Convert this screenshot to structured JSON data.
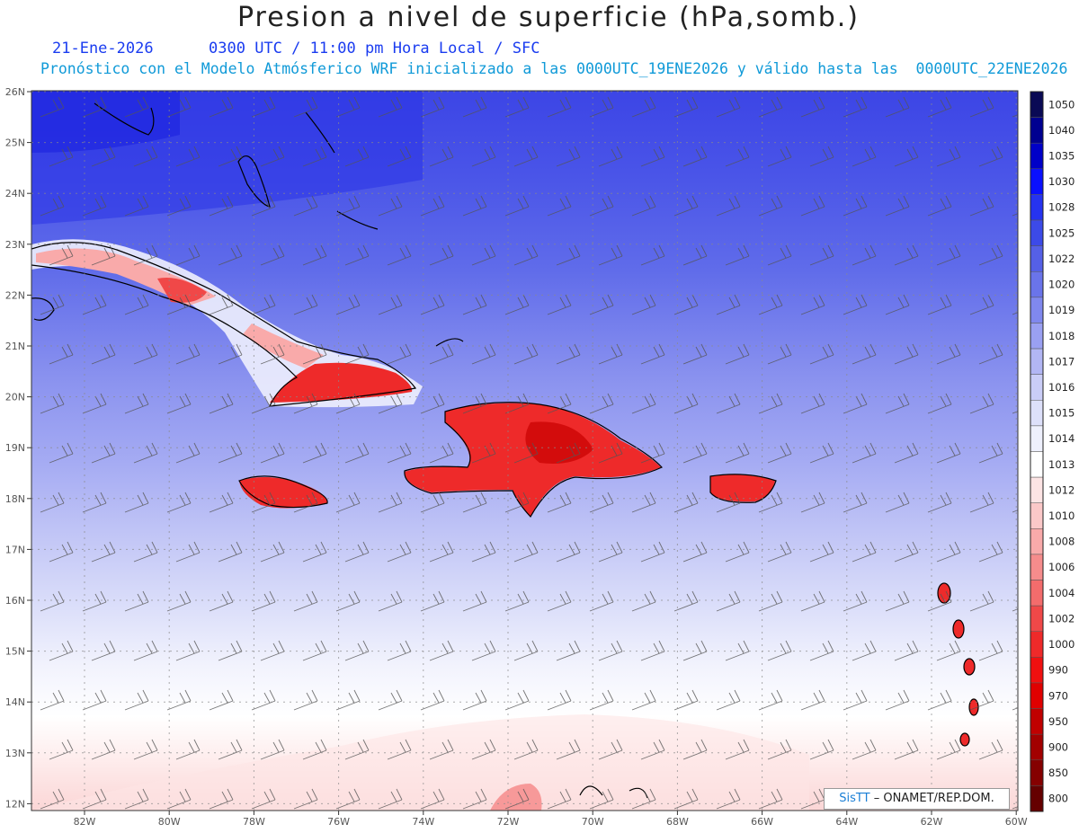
{
  "title": "Presion a nivel de superficie (hPa,somb.)",
  "date": "21-Ene-2026",
  "time": "0300 UTC / 11:00 pm Hora Local / SFC",
  "forecast": "Pronóstico con el Modelo Atmósferico WRF inicializado a las 0000UTC_19ENE2026 y válido hasta las  0000UTC_22ENE2026",
  "lat_labels": [
    "26N",
    "25N",
    "24N",
    "23N",
    "22N",
    "21N",
    "20N",
    "19N",
    "18N",
    "17N",
    "16N",
    "15N",
    "14N",
    "13N",
    "12N"
  ],
  "lon_labels": [
    "82W",
    "80W",
    "78W",
    "76W",
    "74W",
    "72W",
    "70W",
    "68W",
    "66W",
    "64W",
    "62W",
    "60W"
  ],
  "legend": {
    "levels": [
      "1050",
      "1040",
      "1035",
      "1030",
      "1028",
      "1025",
      "1022",
      "1020",
      "1019",
      "1018",
      "1017",
      "1016",
      "1015",
      "1014",
      "1013",
      "1012",
      "1010",
      "1008",
      "1006",
      "1004",
      "1002",
      "1000",
      "990",
      "970",
      "950",
      "900",
      "850",
      "800"
    ],
    "colors": [
      "#0a0a55",
      "#000090",
      "#0000c8",
      "#0a10ff",
      "#2633f0",
      "#3c4ae8",
      "#5560e6",
      "#6a74ea",
      "#8088ee",
      "#9aa0f2",
      "#b2b6f4",
      "#cacdf7",
      "#dde0fa",
      "#eef0fd",
      "#ffffff",
      "#fde4e4",
      "#fbc8c8",
      "#f9aaaa",
      "#f68c8c",
      "#f36c6c",
      "#f04848",
      "#ee2a2a",
      "#f01010",
      "#e00000",
      "#c00000",
      "#a20000",
      "#850000",
      "#650000"
    ]
  },
  "credit": {
    "logo": "SisTT",
    "text": "– ONAMET/REP.DOM."
  }
}
